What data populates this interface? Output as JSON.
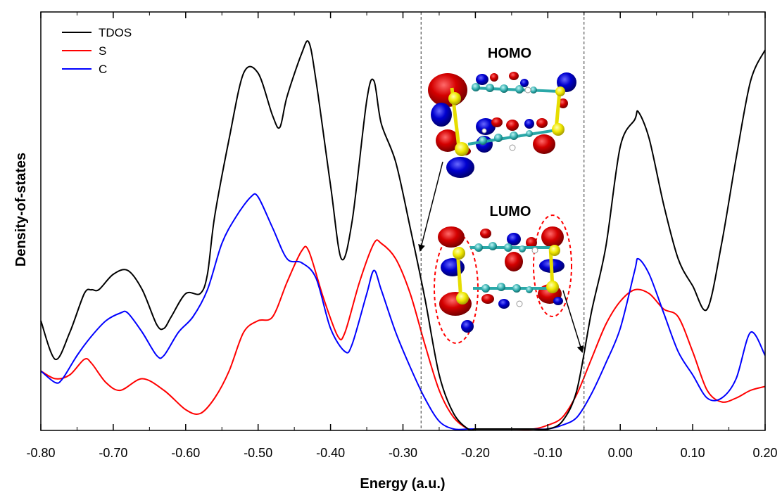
{
  "chart_data": {
    "type": "line",
    "xlabel": "Energy (a.u.)",
    "ylabel": "Density-of-states",
    "xlim": [
      -0.8,
      0.2
    ],
    "ylim": [
      0,
      100
    ],
    "xticks": [
      "-0.80",
      "-0.70",
      "-0.60",
      "-0.50",
      "-0.40",
      "-0.30",
      "-0.20",
      "-0.10",
      "0.00",
      "0.10",
      "0.20"
    ],
    "grid": false,
    "legend_position": "top-left",
    "reference_lines": [
      -0.275,
      -0.05
    ],
    "annotations": [
      "HOMO",
      "LUMO"
    ],
    "series": [
      {
        "name": "TDOS",
        "color": "#000000",
        "x": [
          -0.8,
          -0.78,
          -0.76,
          -0.74,
          -0.73,
          -0.72,
          -0.7,
          -0.68,
          -0.66,
          -0.64,
          -0.63,
          -0.62,
          -0.6,
          -0.58,
          -0.57,
          -0.56,
          -0.54,
          -0.52,
          -0.5,
          -0.48,
          -0.47,
          -0.46,
          -0.44,
          -0.43,
          -0.42,
          -0.4,
          -0.385,
          -0.37,
          -0.35,
          -0.34,
          -0.33,
          -0.31,
          -0.29,
          -0.27,
          -0.25,
          -0.23,
          -0.21,
          -0.2,
          -0.19,
          -0.17,
          -0.15,
          -0.13,
          -0.12,
          -0.1,
          -0.08,
          -0.06,
          -0.04,
          -0.02,
          0.0,
          0.02,
          0.025,
          0.04,
          0.06,
          0.08,
          0.1,
          0.12,
          0.14,
          0.16,
          0.18,
          0.2
        ],
        "y": [
          28,
          18,
          25,
          35,
          36,
          36,
          40,
          41,
          36,
          27,
          26,
          29,
          35,
          35,
          40,
          55,
          75,
          92,
          92,
          81,
          78,
          86,
          97,
          100,
          90,
          63,
          44,
          54,
          85,
          90,
          79,
          69,
          52,
          34,
          14,
          4,
          0,
          0,
          0,
          0,
          0,
          0,
          0,
          0,
          2,
          10,
          30,
          47,
          73,
          80,
          82,
          75,
          58,
          44,
          37,
          31,
          48,
          70,
          90,
          98
        ]
      },
      {
        "name": "S",
        "color": "#ff0000",
        "x": [
          -0.8,
          -0.78,
          -0.76,
          -0.74,
          -0.73,
          -0.71,
          -0.69,
          -0.66,
          -0.63,
          -0.6,
          -0.58,
          -0.56,
          -0.54,
          -0.52,
          -0.5,
          -0.48,
          -0.46,
          -0.44,
          -0.43,
          -0.41,
          -0.39,
          -0.38,
          -0.36,
          -0.34,
          -0.33,
          -0.31,
          -0.29,
          -0.27,
          -0.25,
          -0.23,
          -0.21,
          -0.2,
          -0.15,
          -0.12,
          -0.1,
          -0.08,
          -0.06,
          -0.04,
          -0.02,
          0.0,
          0.02,
          0.04,
          0.06,
          0.08,
          0.1,
          0.12,
          0.14,
          0.16,
          0.18,
          0.2
        ],
        "y": [
          15,
          13,
          14,
          18,
          17,
          12,
          10,
          13,
          10,
          5,
          4,
          8,
          15,
          25,
          28,
          29,
          38,
          46,
          46,
          34,
          24,
          25,
          38,
          48,
          48,
          44,
          35,
          22,
          10,
          3,
          0,
          0,
          0,
          0,
          1,
          3,
          9,
          18,
          27,
          33,
          36,
          35,
          31,
          29,
          20,
          10,
          7,
          8,
          10,
          11
        ]
      },
      {
        "name": "C",
        "color": "#0000ff",
        "x": [
          -0.8,
          -0.78,
          -0.77,
          -0.75,
          -0.73,
          -0.71,
          -0.69,
          -0.68,
          -0.66,
          -0.64,
          -0.63,
          -0.61,
          -0.59,
          -0.57,
          -0.55,
          -0.53,
          -0.51,
          -0.5,
          -0.48,
          -0.46,
          -0.44,
          -0.42,
          -0.4,
          -0.38,
          -0.37,
          -0.35,
          -0.34,
          -0.33,
          -0.31,
          -0.29,
          -0.27,
          -0.25,
          -0.23,
          -0.21,
          -0.2,
          -0.15,
          -0.12,
          -0.1,
          -0.08,
          -0.06,
          -0.04,
          -0.02,
          0.0,
          0.02,
          0.025,
          0.04,
          0.06,
          0.08,
          0.1,
          0.12,
          0.14,
          0.16,
          0.18,
          0.2
        ],
        "y": [
          15,
          12,
          13,
          19,
          24,
          28,
          30,
          30,
          25,
          19,
          19,
          25,
          29,
          36,
          48,
          55,
          60,
          60,
          52,
          44,
          43,
          39,
          26,
          20,
          22,
          35,
          41,
          36,
          25,
          16,
          8,
          2,
          0,
          0,
          0,
          0,
          0,
          0,
          1,
          3,
          9,
          17,
          26,
          41,
          44,
          40,
          30,
          20,
          14,
          8,
          8,
          13,
          25,
          19
        ]
      }
    ]
  }
}
